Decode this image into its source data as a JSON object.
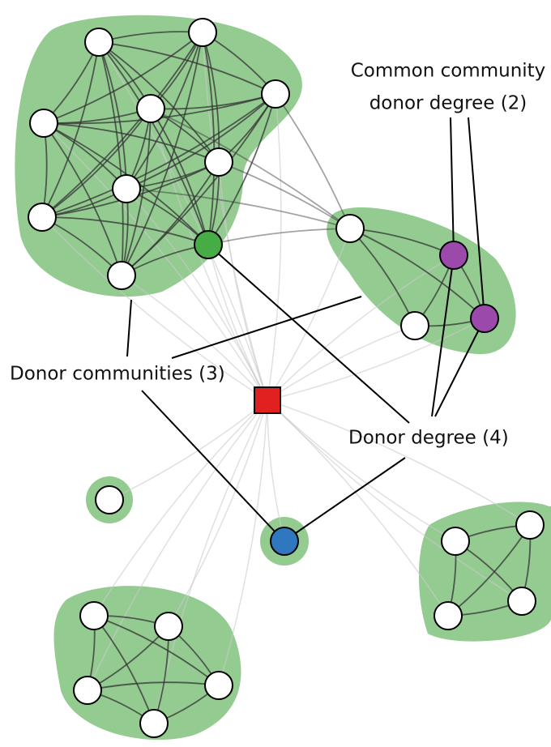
{
  "annotations": {
    "common_community_donor_degree": [
      "Common community",
      "donor degree (2)"
    ],
    "donor_communities": "Donor communities (3)",
    "donor_degree": "Donor degree (4)"
  }
}
